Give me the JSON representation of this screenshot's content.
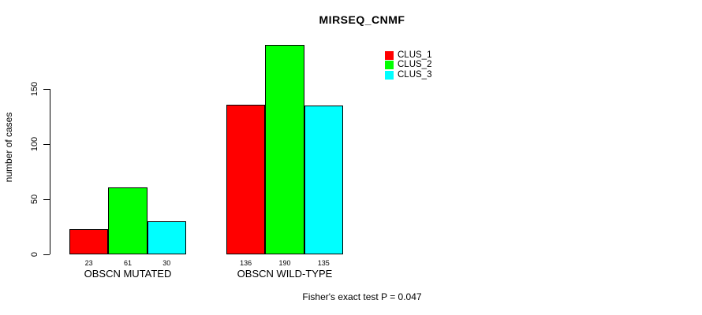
{
  "chart_data": {
    "type": "bar",
    "title": "MIRSEQ_CNMF",
    "xlabel": "",
    "ylabel": "number of cases",
    "categories": [
      "OBSCN MUTATED",
      "OBSCN WILD-TYPE"
    ],
    "series": [
      {
        "name": "CLUS_1",
        "color": "#ff0000",
        "values": [
          23,
          136
        ]
      },
      {
        "name": "CLUS_2",
        "color": "#00ff00",
        "values": [
          61,
          190
        ]
      },
      {
        "name": "CLUS_3",
        "color": "#00ffff",
        "values": [
          30,
          135
        ]
      }
    ],
    "yticks": [
      0,
      50,
      100,
      150
    ],
    "ylim": [
      0,
      195
    ],
    "grid": false,
    "legend_position": "top-right",
    "bar_border_color": "#000000",
    "bar_value_labels_shown": true,
    "annotation": "Fisher's exact test P = 0.047"
  }
}
